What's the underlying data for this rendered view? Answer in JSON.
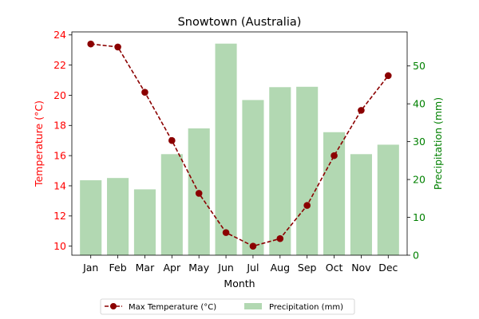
{
  "chart_data": {
    "type": "bar+line",
    "title": "Snowtown (Australia)",
    "xlabel": "Month",
    "categories": [
      "Jan",
      "Feb",
      "Mar",
      "Apr",
      "May",
      "Jun",
      "Jul",
      "Aug",
      "Sep",
      "Oct",
      "Nov",
      "Dec"
    ],
    "left_axis": {
      "label": "Temperature (°C)",
      "ylim": [
        9.4,
        24.2
      ],
      "ticks": [
        10,
        12,
        14,
        16,
        18,
        20,
        22,
        24
      ],
      "color": "#ff0000"
    },
    "right_axis": {
      "label": "Precipitation (mm)",
      "ylim": [
        0,
        59
      ],
      "ticks": [
        0,
        10,
        20,
        30,
        40,
        50
      ],
      "color": "#008000"
    },
    "series": [
      {
        "name": "Max Temperature (°C)",
        "type": "line",
        "axis": "left",
        "color": "#8b0000",
        "values": [
          23.4,
          23.2,
          20.2,
          17.0,
          13.5,
          10.9,
          10.0,
          10.5,
          12.7,
          16.0,
          19.0,
          21.3
        ]
      },
      {
        "name": "Precipitation (mm)",
        "type": "bar",
        "axis": "right",
        "color": "#b2d8b2",
        "values": [
          19.8,
          20.4,
          17.4,
          26.7,
          33.5,
          55.9,
          41.0,
          44.4,
          44.5,
          32.5,
          26.7,
          29.2
        ]
      }
    ],
    "legend": {
      "placement": "bottom-center"
    },
    "grid": false
  }
}
